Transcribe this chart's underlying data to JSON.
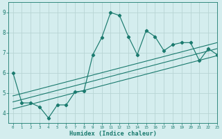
{
  "xlabel": "Humidex (Indice chaleur)",
  "bg_color": "#d4edee",
  "grid_color": "#c0dada",
  "line_color": "#1a7a6e",
  "xmin": -0.5,
  "xmax": 23,
  "ymin": 3.5,
  "ymax": 9.5,
  "x_data": [
    0,
    1,
    2,
    3,
    4,
    5,
    6,
    7,
    8,
    9,
    10,
    11,
    12,
    13,
    14,
    15,
    16,
    17,
    18,
    19,
    20,
    21,
    22,
    23
  ],
  "y_data": [
    6.0,
    4.5,
    4.5,
    4.3,
    3.75,
    4.4,
    4.4,
    5.05,
    5.1,
    6.9,
    7.75,
    9.0,
    8.85,
    7.8,
    6.9,
    8.1,
    7.8,
    7.1,
    7.4,
    7.5,
    7.5,
    6.6,
    7.2,
    6.9
  ],
  "yticks": [
    4,
    5,
    6,
    7,
    8,
    9
  ],
  "xticks": [
    0,
    1,
    2,
    3,
    4,
    5,
    6,
    7,
    8,
    9,
    10,
    11,
    12,
    13,
    14,
    15,
    16,
    17,
    18,
    19,
    20,
    21,
    22,
    23
  ],
  "reg_lower_start": 4.2,
  "reg_lower_end": 6.85,
  "reg_mid_start": 4.55,
  "reg_mid_end": 7.2,
  "reg_upper_start": 4.85,
  "reg_upper_end": 7.5
}
